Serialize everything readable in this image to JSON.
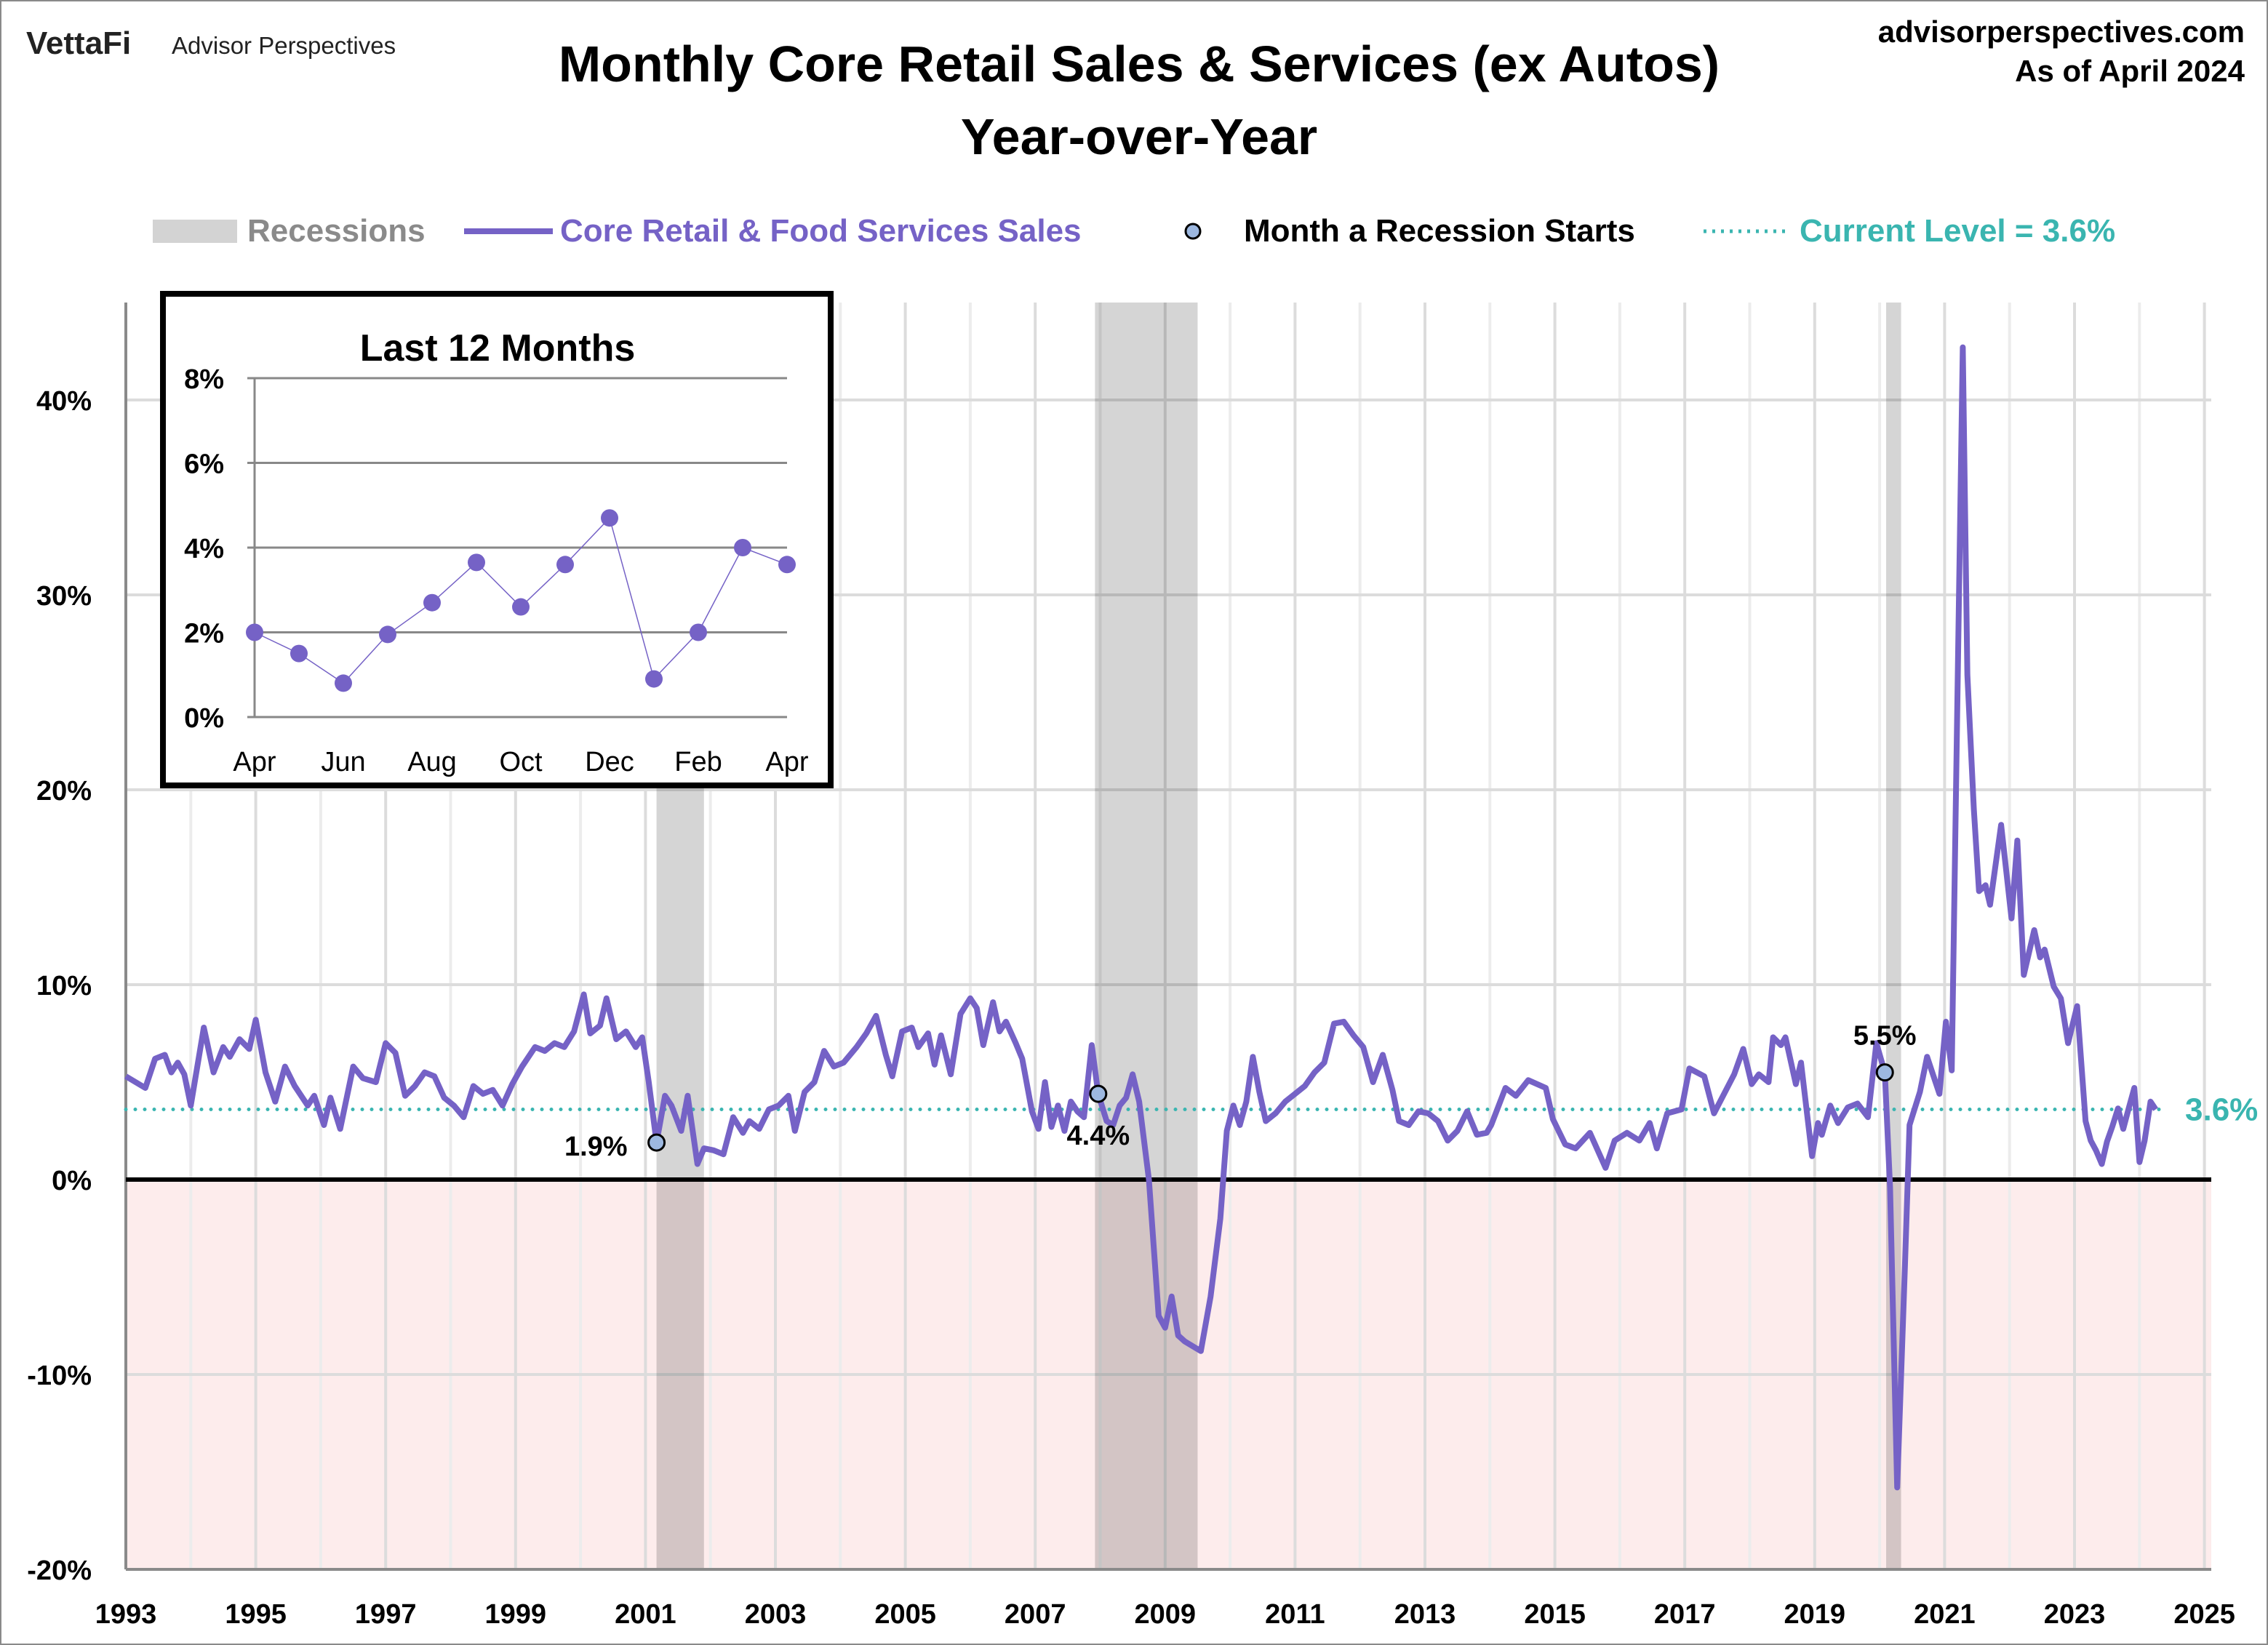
{
  "header": {
    "logo_brand": "VettaFi",
    "logo_sub": "Advisor Perspectives",
    "site": "advisorperspectives.com",
    "as_of": "As of April 2024"
  },
  "colors": {
    "series": "#7562C6",
    "recession": "#D3D3D3",
    "current": "#3AB5B0",
    "negative_fill": "#FDECEC",
    "marker": "#9DB8E0"
  },
  "chart_data": [
    {
      "type": "line",
      "title": "Monthly Core Retail Sales & Services (ex Autos)",
      "subtitle": "Year-over-Year",
      "xlabel": "",
      "ylabel": "",
      "xlim": [
        1993,
        2025
      ],
      "ylim": [
        -20,
        45
      ],
      "grid": true,
      "legend_position": "top",
      "legend": {
        "recessions": "Recessions",
        "series": "Core Retail & Food Services Sales",
        "recession_start": "Month a Recession Starts",
        "current": "Current Level = 3.6%"
      },
      "x_ticks": [
        "1993",
        "1995",
        "1997",
        "1999",
        "2001",
        "2003",
        "2005",
        "2007",
        "2009",
        "2011",
        "2013",
        "2015",
        "2017",
        "2019",
        "2021",
        "2023",
        "2025"
      ],
      "y_ticks": [
        {
          "v": 40,
          "label": "40%"
        },
        {
          "v": 30,
          "label": "30%"
        },
        {
          "v": 20,
          "label": "20%"
        },
        {
          "v": 10,
          "label": "10%"
        },
        {
          "v": 0,
          "label": "0%"
        },
        {
          "v": -10,
          "label": "-10%"
        },
        {
          "v": -20,
          "label": "-20%"
        }
      ],
      "recessions": [
        [
          2001.17,
          2001.9
        ],
        [
          2007.92,
          2009.5
        ],
        [
          2020.1,
          2020.33
        ]
      ],
      "recession_starts": [
        {
          "x": 2001.17,
          "y": 1.9,
          "label": "1.9%"
        },
        {
          "x": 2007.97,
          "y": 4.4,
          "label": "4.4%"
        },
        {
          "x": 2020.08,
          "y": 5.5,
          "label": "5.5%"
        }
      ],
      "current_level": {
        "value": 3.6,
        "label": "3.6%"
      },
      "series": [
        {
          "name": "Core Retail & Food Services Sales",
          "points": [
            [
              1993.0,
              5.3
            ],
            [
              1993.15,
              5.0
            ],
            [
              1993.3,
              4.7
            ],
            [
              1993.45,
              6.2
            ],
            [
              1993.6,
              6.4
            ],
            [
              1993.7,
              5.5
            ],
            [
              1993.8,
              6.0
            ],
            [
              1993.9,
              5.4
            ],
            [
              1994.0,
              3.8
            ],
            [
              1994.2,
              7.8
            ],
            [
              1994.35,
              5.5
            ],
            [
              1994.5,
              6.8
            ],
            [
              1994.6,
              6.3
            ],
            [
              1994.75,
              7.2
            ],
            [
              1994.9,
              6.7
            ],
            [
              1995.0,
              8.2
            ],
            [
              1995.15,
              5.5
            ],
            [
              1995.3,
              4.0
            ],
            [
              1995.45,
              5.8
            ],
            [
              1995.6,
              4.8
            ],
            [
              1995.8,
              3.8
            ],
            [
              1995.9,
              4.3
            ],
            [
              1996.05,
              2.8
            ],
            [
              1996.15,
              4.2
            ],
            [
              1996.3,
              2.6
            ],
            [
              1996.5,
              5.8
            ],
            [
              1996.65,
              5.2
            ],
            [
              1996.85,
              5.0
            ],
            [
              1997.0,
              7.0
            ],
            [
              1997.15,
              6.5
            ],
            [
              1997.3,
              4.3
            ],
            [
              1997.45,
              4.8
            ],
            [
              1997.6,
              5.5
            ],
            [
              1997.75,
              5.3
            ],
            [
              1997.9,
              4.2
            ],
            [
              1998.05,
              3.8
            ],
            [
              1998.2,
              3.2
            ],
            [
              1998.35,
              4.8
            ],
            [
              1998.5,
              4.4
            ],
            [
              1998.65,
              4.6
            ],
            [
              1998.8,
              3.8
            ],
            [
              1998.95,
              4.9
            ],
            [
              1999.1,
              5.8
            ],
            [
              1999.3,
              6.8
            ],
            [
              1999.45,
              6.6
            ],
            [
              1999.6,
              7.0
            ],
            [
              1999.75,
              6.8
            ],
            [
              1999.9,
              7.6
            ],
            [
              2000.05,
              9.5
            ],
            [
              2000.15,
              7.5
            ],
            [
              2000.3,
              7.9
            ],
            [
              2000.4,
              9.3
            ],
            [
              2000.55,
              7.2
            ],
            [
              2000.7,
              7.6
            ],
            [
              2000.85,
              6.8
            ],
            [
              2000.95,
              7.3
            ],
            [
              2001.05,
              5.0
            ],
            [
              2001.17,
              1.9
            ],
            [
              2001.3,
              4.3
            ],
            [
              2001.4,
              3.8
            ],
            [
              2001.55,
              2.5
            ],
            [
              2001.65,
              4.3
            ],
            [
              2001.8,
              0.8
            ],
            [
              2001.9,
              1.6
            ],
            [
              2002.05,
              1.5
            ],
            [
              2002.2,
              1.3
            ],
            [
              2002.35,
              3.2
            ],
            [
              2002.5,
              2.4
            ],
            [
              2002.6,
              3.0
            ],
            [
              2002.75,
              2.6
            ],
            [
              2002.9,
              3.6
            ],
            [
              2003.05,
              3.8
            ],
            [
              2003.2,
              4.3
            ],
            [
              2003.3,
              2.5
            ],
            [
              2003.45,
              4.5
            ],
            [
              2003.6,
              5.0
            ],
            [
              2003.75,
              6.6
            ],
            [
              2003.9,
              5.8
            ],
            [
              2004.05,
              6.0
            ],
            [
              2004.25,
              6.8
            ],
            [
              2004.4,
              7.5
            ],
            [
              2004.55,
              8.4
            ],
            [
              2004.7,
              6.4
            ],
            [
              2004.8,
              5.3
            ],
            [
              2004.95,
              7.6
            ],
            [
              2005.1,
              7.8
            ],
            [
              2005.2,
              6.8
            ],
            [
              2005.35,
              7.5
            ],
            [
              2005.45,
              5.9
            ],
            [
              2005.55,
              7.4
            ],
            [
              2005.7,
              5.4
            ],
            [
              2005.85,
              8.5
            ],
            [
              2006.0,
              9.3
            ],
            [
              2006.1,
              8.8
            ],
            [
              2006.2,
              6.9
            ],
            [
              2006.35,
              9.1
            ],
            [
              2006.45,
              7.6
            ],
            [
              2006.55,
              8.1
            ],
            [
              2006.7,
              7.0
            ],
            [
              2006.8,
              6.2
            ],
            [
              2006.95,
              3.5
            ],
            [
              2007.05,
              2.6
            ],
            [
              2007.15,
              5.0
            ],
            [
              2007.25,
              2.7
            ],
            [
              2007.35,
              3.8
            ],
            [
              2007.45,
              2.5
            ],
            [
              2007.55,
              4.0
            ],
            [
              2007.65,
              3.5
            ],
            [
              2007.75,
              3.2
            ],
            [
              2007.87,
              6.9
            ],
            [
              2007.97,
              4.4
            ],
            [
              2008.1,
              3.0
            ],
            [
              2008.2,
              2.8
            ],
            [
              2008.3,
              3.8
            ],
            [
              2008.4,
              4.2
            ],
            [
              2008.5,
              5.4
            ],
            [
              2008.6,
              4.0
            ],
            [
              2008.75,
              0.0
            ],
            [
              2008.9,
              -7.0
            ],
            [
              2009.0,
              -7.6
            ],
            [
              2009.1,
              -6.0
            ],
            [
              2009.2,
              -8.0
            ],
            [
              2009.3,
              -8.3
            ],
            [
              2009.45,
              -8.6
            ],
            [
              2009.55,
              -8.8
            ],
            [
              2009.7,
              -6.0
            ],
            [
              2009.85,
              -2.0
            ],
            [
              2009.95,
              2.5
            ],
            [
              2010.05,
              3.8
            ],
            [
              2010.15,
              2.8
            ],
            [
              2010.25,
              4.0
            ],
            [
              2010.35,
              6.3
            ],
            [
              2010.45,
              4.5
            ],
            [
              2010.55,
              3.0
            ],
            [
              2010.7,
              3.4
            ],
            [
              2010.85,
              4.0
            ],
            [
              2011.0,
              4.4
            ],
            [
              2011.15,
              4.8
            ],
            [
              2011.3,
              5.5
            ],
            [
              2011.45,
              6.0
            ],
            [
              2011.6,
              8.0
            ],
            [
              2011.75,
              8.1
            ],
            [
              2011.9,
              7.4
            ],
            [
              2012.05,
              6.8
            ],
            [
              2012.2,
              5.0
            ],
            [
              2012.35,
              6.4
            ],
            [
              2012.5,
              4.6
            ],
            [
              2012.6,
              3.0
            ],
            [
              2012.75,
              2.8
            ],
            [
              2012.9,
              3.5
            ],
            [
              2013.05,
              3.4
            ],
            [
              2013.2,
              3.0
            ],
            [
              2013.35,
              2.0
            ],
            [
              2013.5,
              2.5
            ],
            [
              2013.65,
              3.5
            ],
            [
              2013.8,
              2.3
            ],
            [
              2013.95,
              2.4
            ],
            [
              2014.02,
              2.8
            ],
            [
              2014.24,
              4.7
            ],
            [
              2014.4,
              4.3
            ],
            [
              2014.59,
              5.1
            ],
            [
              2014.86,
              4.7
            ],
            [
              2014.97,
              3.1
            ],
            [
              2015.16,
              1.8
            ],
            [
              2015.32,
              1.6
            ],
            [
              2015.54,
              2.4
            ],
            [
              2015.78,
              0.6
            ],
            [
              2015.92,
              2.0
            ],
            [
              2016.11,
              2.4
            ],
            [
              2016.3,
              2.0
            ],
            [
              2016.46,
              2.9
            ],
            [
              2016.57,
              1.6
            ],
            [
              2016.73,
              3.4
            ],
            [
              2016.95,
              3.6
            ],
            [
              2017.07,
              5.7
            ],
            [
              2017.3,
              5.3
            ],
            [
              2017.45,
              3.4
            ],
            [
              2017.76,
              5.4
            ],
            [
              2017.9,
              6.7
            ],
            [
              2018.03,
              4.9
            ],
            [
              2018.14,
              5.4
            ],
            [
              2018.29,
              5.0
            ],
            [
              2018.36,
              7.3
            ],
            [
              2018.48,
              6.9
            ],
            [
              2018.55,
              7.3
            ],
            [
              2018.71,
              4.9
            ],
            [
              2018.79,
              6.0
            ],
            [
              2018.96,
              1.2
            ],
            [
              2019.05,
              2.9
            ],
            [
              2019.11,
              2.3
            ],
            [
              2019.24,
              3.8
            ],
            [
              2019.36,
              2.9
            ],
            [
              2019.51,
              3.7
            ],
            [
              2019.66,
              3.9
            ],
            [
              2019.82,
              3.2
            ],
            [
              2019.95,
              7.0
            ],
            [
              2020.08,
              5.5
            ],
            [
              2020.16,
              -0.4
            ],
            [
              2020.27,
              -15.8
            ],
            [
              2020.39,
              -4.4
            ],
            [
              2020.46,
              2.8
            ],
            [
              2020.62,
              4.5
            ],
            [
              2020.73,
              6.3
            ],
            [
              2020.92,
              4.4
            ],
            [
              2021.02,
              8.1
            ],
            [
              2021.11,
              5.6
            ],
            [
              2021.28,
              42.7
            ],
            [
              2021.35,
              25.9
            ],
            [
              2021.45,
              19.0
            ],
            [
              2021.53,
              14.8
            ],
            [
              2021.63,
              15.1
            ],
            [
              2021.7,
              14.1
            ],
            [
              2021.87,
              18.2
            ],
            [
              2022.03,
              13.4
            ],
            [
              2022.12,
              17.4
            ],
            [
              2022.22,
              10.5
            ],
            [
              2022.38,
              12.8
            ],
            [
              2022.47,
              11.4
            ],
            [
              2022.54,
              11.8
            ],
            [
              2022.68,
              9.9
            ],
            [
              2022.79,
              9.3
            ],
            [
              2022.9,
              7.0
            ],
            [
              2023.04,
              8.9
            ],
            [
              2023.17,
              3.0
            ],
            [
              2023.25,
              2.0
            ],
            [
              2023.33,
              1.5
            ],
            [
              2023.42,
              0.8
            ],
            [
              2023.5,
              1.95
            ],
            [
              2023.58,
              2.7
            ],
            [
              2023.67,
              3.65
            ],
            [
              2023.75,
              2.6
            ],
            [
              2023.83,
              3.6
            ],
            [
              2023.92,
              4.7
            ],
            [
              2024.0,
              0.9
            ],
            [
              2024.08,
              2.0
            ],
            [
              2024.17,
              4.0
            ],
            [
              2024.25,
              3.6
            ]
          ]
        }
      ]
    },
    {
      "type": "line",
      "title": "Last 12 Months",
      "ylim": [
        0,
        8
      ],
      "y_ticks": [
        "0%",
        "2%",
        "4%",
        "6%",
        "8%"
      ],
      "categories": [
        "Apr",
        "May",
        "Jun",
        "Jul",
        "Aug",
        "Sep",
        "Oct",
        "Nov",
        "Dec",
        "Jan",
        "Feb",
        "Mar",
        "Apr"
      ],
      "x_tick_labels_shown": [
        "Apr",
        "Jun",
        "Aug",
        "Oct",
        "Dec",
        "Feb",
        "Apr"
      ],
      "values": [
        2.0,
        1.5,
        0.8,
        1.95,
        2.7,
        3.65,
        2.6,
        3.6,
        4.7,
        0.9,
        2.0,
        4.0,
        3.6
      ]
    }
  ]
}
